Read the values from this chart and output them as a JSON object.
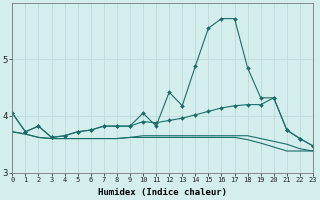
{
  "xlabel": "Humidex (Indice chaleur)",
  "bg_color": "#d4eeee",
  "line_color": "#1a6e6a",
  "grid_color": "#c0dcdc",
  "x": [
    0,
    1,
    2,
    3,
    4,
    5,
    6,
    7,
    8,
    9,
    10,
    11,
    12,
    13,
    14,
    15,
    16,
    17,
    18,
    19,
    20,
    21,
    22,
    23
  ],
  "line1": [
    4.05,
    3.72,
    3.82,
    3.62,
    3.65,
    3.72,
    3.75,
    3.82,
    3.82,
    3.82,
    4.05,
    3.82,
    4.42,
    4.18,
    4.88,
    5.55,
    5.72,
    5.72,
    4.85,
    4.32,
    4.32,
    3.75,
    3.6,
    3.47
  ],
  "line2": [
    4.05,
    3.72,
    3.82,
    3.62,
    3.65,
    3.72,
    3.75,
    3.82,
    3.82,
    3.82,
    3.9,
    3.88,
    3.92,
    3.96,
    4.02,
    4.08,
    4.14,
    4.18,
    4.2,
    4.2,
    4.32,
    3.75,
    3.6,
    3.47
  ],
  "line3": [
    3.72,
    3.68,
    3.62,
    3.6,
    3.6,
    3.6,
    3.6,
    3.6,
    3.6,
    3.62,
    3.62,
    3.62,
    3.62,
    3.62,
    3.62,
    3.62,
    3.62,
    3.62,
    3.58,
    3.52,
    3.45,
    3.38,
    3.38,
    3.38
  ],
  "line4": [
    3.72,
    3.68,
    3.62,
    3.6,
    3.6,
    3.6,
    3.6,
    3.6,
    3.6,
    3.62,
    3.65,
    3.65,
    3.65,
    3.65,
    3.65,
    3.65,
    3.65,
    3.65,
    3.65,
    3.6,
    3.55,
    3.5,
    3.42,
    3.38
  ],
  "ylim": [
    3.0,
    6.0
  ],
  "yticks": [
    3,
    4,
    5
  ],
  "xlim": [
    0,
    23
  ]
}
